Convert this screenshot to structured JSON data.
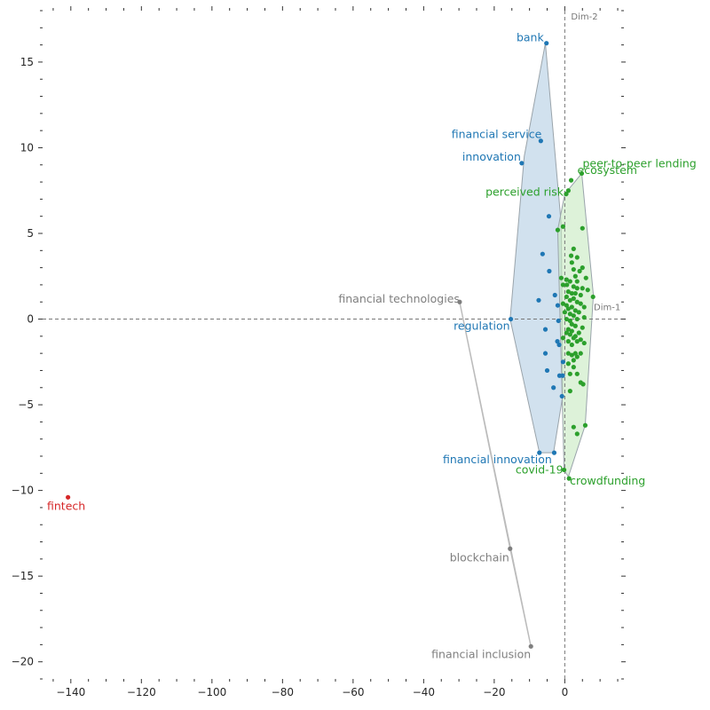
{
  "chart_data": {
    "type": "scatter",
    "title": "",
    "xlabel": "",
    "ylabel": "",
    "xlim": [
      -148,
      16
    ],
    "ylim": [
      -21,
      18
    ],
    "xticks": [
      -140,
      -120,
      -100,
      -80,
      -60,
      -40,
      -20,
      0
    ],
    "yticks": [
      -20,
      -15,
      -10,
      -5,
      0,
      5,
      10,
      15
    ],
    "grid": false,
    "legend": "none",
    "reference_lines": {
      "x": 0,
      "y": 0,
      "x_label": "Dim-1",
      "y_label": "Dim-2"
    },
    "clusters": [
      {
        "color": "#1f77b4",
        "fill": "#b3cde3",
        "hull": [
          [
            -5.5,
            16.1
          ],
          [
            -11.5,
            9.5
          ],
          [
            -15.5,
            0.0
          ],
          [
            -7.2,
            -7.8
          ],
          [
            -3.2,
            -7.8
          ],
          [
            -0.6,
            -4.5
          ],
          [
            -1.0,
            5.5
          ]
        ],
        "labeled": [
          {
            "label": "bank",
            "x": -5.2,
            "y": 16.1
          },
          {
            "label": "financial service",
            "x": -6.8,
            "y": 10.4
          },
          {
            "label": "innovation",
            "x": -12.2,
            "y": 9.1
          },
          {
            "label": "regulation",
            "x": -15.3,
            "y": 0.0
          },
          {
            "label": "financial innovation",
            "x": -7.2,
            "y": -7.8
          }
        ],
        "points": [
          [
            -3.0,
            -7.8
          ],
          [
            -4.5,
            6.0
          ],
          [
            -6.3,
            3.8
          ],
          [
            -4.4,
            2.8
          ],
          [
            -2.8,
            1.4
          ],
          [
            -7.4,
            1.1
          ],
          [
            -2.0,
            0.8
          ],
          [
            -1.8,
            -0.1
          ],
          [
            -5.5,
            -0.6
          ],
          [
            -2.1,
            -1.3
          ],
          [
            -1.6,
            -1.5
          ],
          [
            -5.5,
            -2.0
          ],
          [
            -0.5,
            -2.5
          ],
          [
            -5.0,
            -3.0
          ],
          [
            -1.5,
            -3.3
          ],
          [
            -0.6,
            -3.3
          ],
          [
            -3.2,
            -4.0
          ],
          [
            -0.8,
            -4.5
          ]
        ]
      },
      {
        "color": "#2ca02c",
        "fill": "#c7e9c0",
        "hull": [
          [
            0.0,
            7.3
          ],
          [
            4.8,
            8.5
          ],
          [
            8.1,
            1.4
          ],
          [
            5.8,
            -6.2
          ],
          [
            1.0,
            -9.2
          ],
          [
            -0.2,
            -8.8
          ],
          [
            -2.0,
            5.2
          ]
        ],
        "labeled": [
          {
            "label": "peer-to-peer lending",
            "x": 4.8,
            "y": 8.5
          },
          {
            "label": "ecosystem",
            "x": 1.8,
            "y": 8.1
          },
          {
            "label": "perceived risk",
            "x": 0.4,
            "y": 7.3
          },
          {
            "label": "covid-19",
            "x": -0.2,
            "y": -8.8
          },
          {
            "label": "crowdfunding",
            "x": 1.2,
            "y": -9.3
          }
        ],
        "points": [
          [
            1.0,
            7.5
          ],
          [
            -2.0,
            5.2
          ],
          [
            -0.5,
            5.4
          ],
          [
            5.0,
            5.3
          ],
          [
            2.5,
            4.1
          ],
          [
            1.8,
            3.7
          ],
          [
            2.0,
            3.3
          ],
          [
            3.5,
            3.6
          ],
          [
            5.0,
            3.0
          ],
          [
            2.5,
            2.9
          ],
          [
            4.2,
            2.8
          ],
          [
            3.0,
            2.5
          ],
          [
            6.0,
            2.4
          ],
          [
            -1.0,
            2.4
          ],
          [
            0.5,
            2.3
          ],
          [
            1.5,
            2.2
          ],
          [
            3.5,
            2.2
          ],
          [
            -0.5,
            2.0
          ],
          [
            0.6,
            2.0
          ],
          [
            2.5,
            1.9
          ],
          [
            3.5,
            1.8
          ],
          [
            5.0,
            1.8
          ],
          [
            6.5,
            1.7
          ],
          [
            1.0,
            1.6
          ],
          [
            2.0,
            1.5
          ],
          [
            3.0,
            1.5
          ],
          [
            4.5,
            1.4
          ],
          [
            0.5,
            1.3
          ],
          [
            8.0,
            1.3
          ],
          [
            2.5,
            1.2
          ],
          [
            1.5,
            1.1
          ],
          [
            3.5,
            1.0
          ],
          [
            4.5,
            0.9
          ],
          [
            -0.5,
            0.9
          ],
          [
            0.5,
            0.8
          ],
          [
            2.0,
            0.7
          ],
          [
            5.5,
            0.7
          ],
          [
            1.0,
            0.6
          ],
          [
            3.0,
            0.5
          ],
          [
            0.0,
            0.4
          ],
          [
            4.0,
            0.4
          ],
          [
            1.5,
            0.3
          ],
          [
            2.5,
            0.2
          ],
          [
            5.5,
            0.1
          ],
          [
            0.5,
            0.0
          ],
          [
            3.5,
            0.0
          ],
          [
            1.5,
            -0.1
          ],
          [
            2.0,
            -0.3
          ],
          [
            3.0,
            -0.4
          ],
          [
            5.0,
            -0.5
          ],
          [
            1.0,
            -0.6
          ],
          [
            2.0,
            -0.7
          ],
          [
            4.0,
            -0.8
          ],
          [
            0.5,
            -0.8
          ],
          [
            1.5,
            -0.9
          ],
          [
            3.0,
            -1.0
          ],
          [
            -0.5,
            -1.1
          ],
          [
            2.5,
            -1.1
          ],
          [
            4.5,
            -1.2
          ],
          [
            1.0,
            -1.3
          ],
          [
            3.5,
            -1.3
          ],
          [
            5.5,
            -1.4
          ],
          [
            2.0,
            -1.5
          ],
          [
            1.0,
            -2.0
          ],
          [
            3.0,
            -2.0
          ],
          [
            4.5,
            -2.0
          ],
          [
            2.0,
            -2.1
          ],
          [
            3.5,
            -2.2
          ],
          [
            2.5,
            -2.4
          ],
          [
            1.0,
            -2.6
          ],
          [
            2.5,
            -2.8
          ],
          [
            1.5,
            -3.2
          ],
          [
            3.5,
            -3.2
          ],
          [
            4.5,
            -3.7
          ],
          [
            5.2,
            -3.8
          ],
          [
            1.5,
            -4.2
          ],
          [
            2.5,
            -6.3
          ],
          [
            3.5,
            -6.7
          ],
          [
            5.8,
            -6.2
          ]
        ]
      },
      {
        "color": "#7f7f7f",
        "fill": "none",
        "hull": [
          [
            -29.8,
            1.0
          ],
          [
            -15.5,
            -13.4
          ],
          [
            -9.6,
            -19.1
          ]
        ],
        "labeled": [
          {
            "label": "financial technologies",
            "x": -29.8,
            "y": 1.0
          },
          {
            "label": "blockchain",
            "x": -15.5,
            "y": -13.4
          },
          {
            "label": "financial inclusion",
            "x": -9.6,
            "y": -19.1
          }
        ],
        "points": []
      },
      {
        "color": "#d62728",
        "fill": "none",
        "hull": [],
        "labeled": [
          {
            "label": "fintech",
            "x": -140.8,
            "y": -10.4
          }
        ],
        "points": []
      }
    ]
  }
}
